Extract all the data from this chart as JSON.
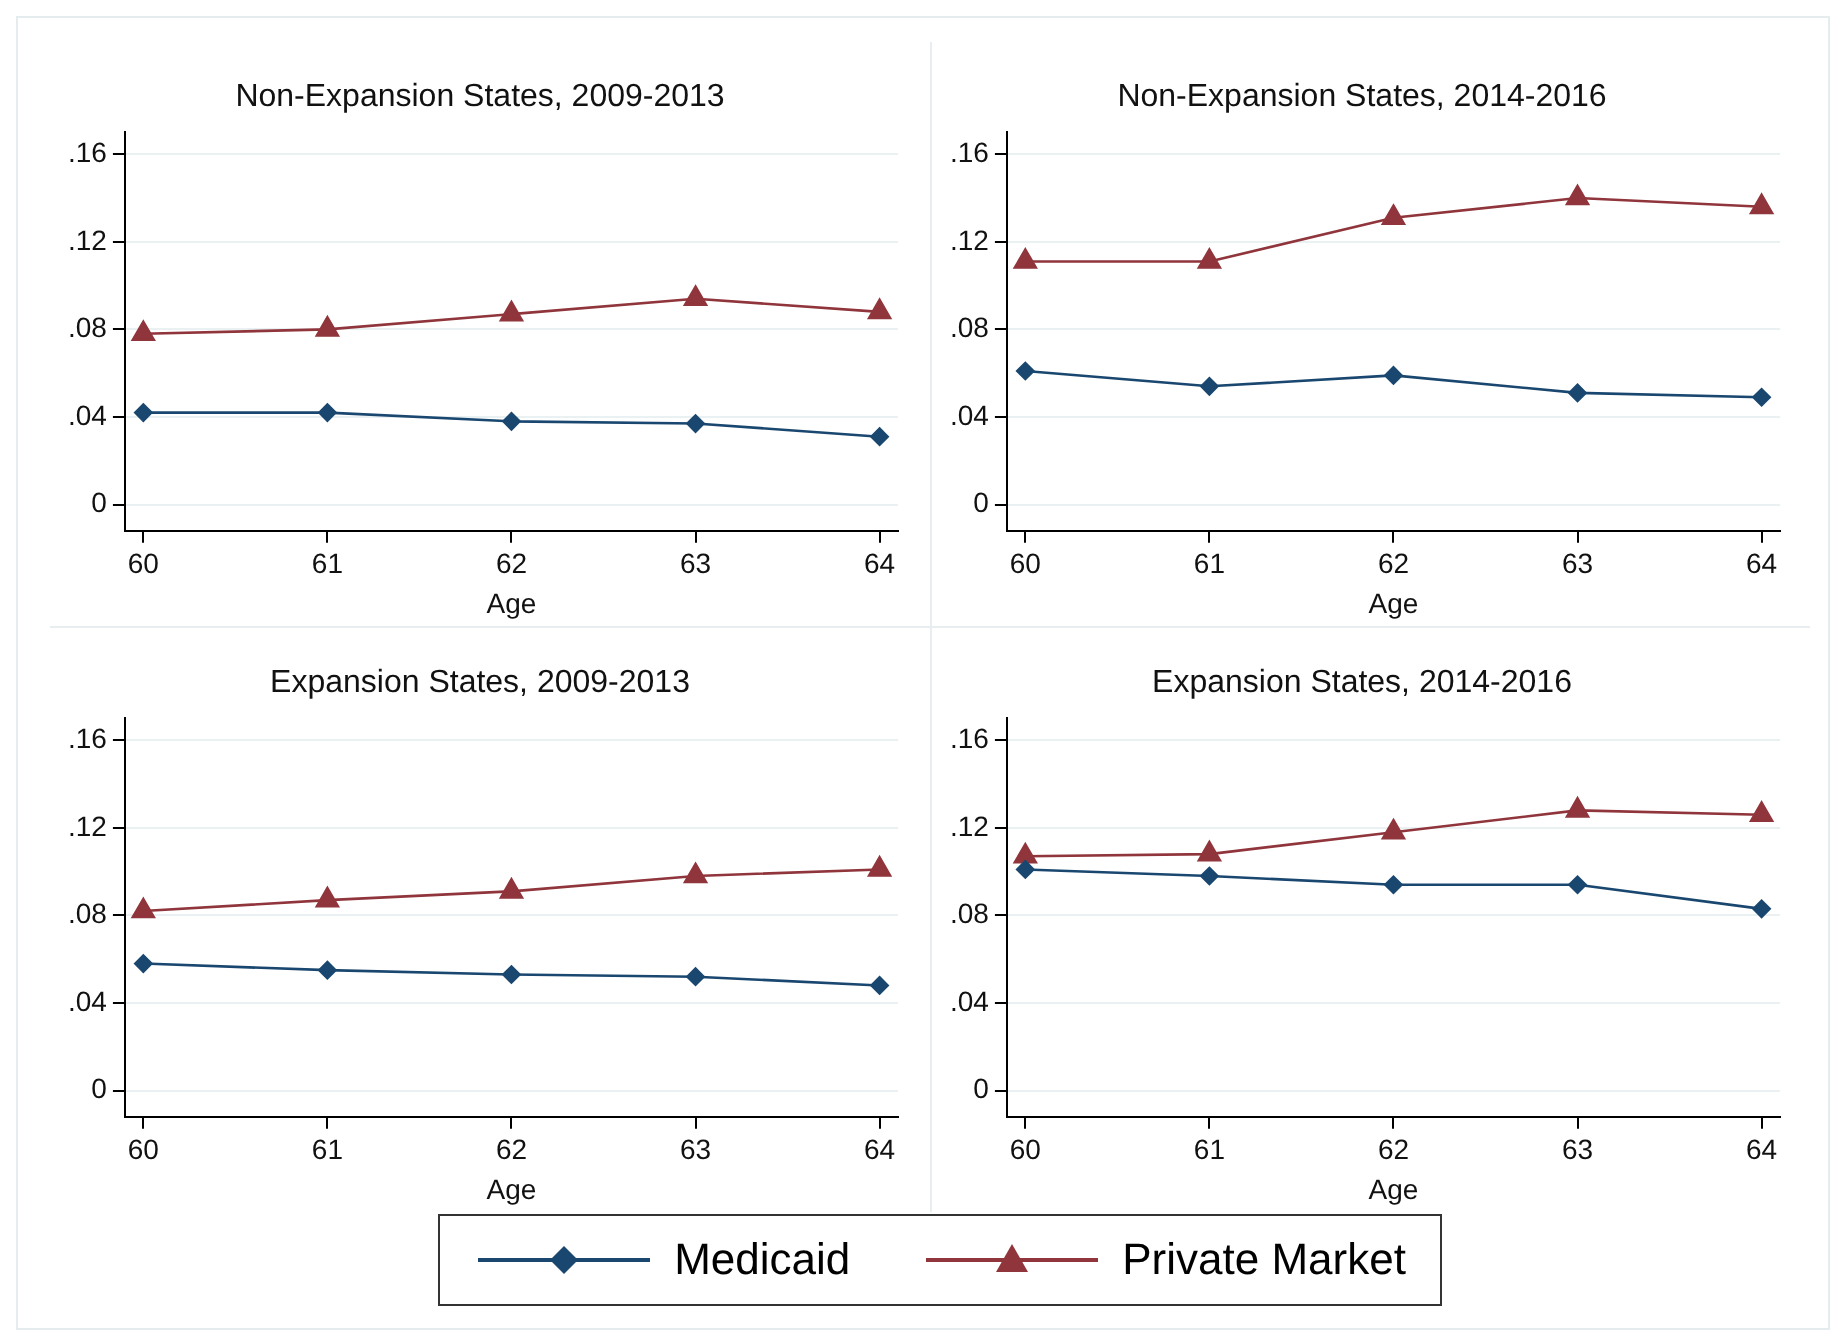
{
  "chart_data": [
    {
      "type": "line",
      "title": "Non-Expansion States, 2009-2013",
      "xlabel": "Age",
      "x": [
        60,
        61,
        62,
        63,
        64
      ],
      "xlim": [
        59.9,
        64.1
      ],
      "xticks": [
        60,
        61,
        62,
        63,
        64
      ],
      "ylim": [
        -0.012,
        0.17
      ],
      "yticks": [
        {
          "value": 0,
          "label": "0"
        },
        {
          "value": 0.04,
          "label": ".04"
        },
        {
          "value": 0.08,
          "label": ".08"
        },
        {
          "value": 0.12,
          "label": ".12"
        },
        {
          "value": 0.16,
          "label": ".16"
        }
      ],
      "grid": "y",
      "legend": "bottom",
      "series": [
        {
          "name": "Medicaid",
          "color": "#1a476f",
          "marker": "diamond",
          "values": [
            0.042,
            0.042,
            0.038,
            0.037,
            0.031
          ]
        },
        {
          "name": "Private Market",
          "color": "#90353b",
          "marker": "triangle",
          "values": [
            0.078,
            0.08,
            0.087,
            0.094,
            0.088
          ]
        }
      ]
    },
    {
      "type": "line",
      "title": "Non-Expansion States, 2014-2016",
      "xlabel": "Age",
      "x": [
        60,
        61,
        62,
        63,
        64
      ],
      "xlim": [
        59.9,
        64.1
      ],
      "xticks": [
        60,
        61,
        62,
        63,
        64
      ],
      "ylim": [
        -0.012,
        0.17
      ],
      "yticks": [
        {
          "value": 0,
          "label": "0"
        },
        {
          "value": 0.04,
          "label": ".04"
        },
        {
          "value": 0.08,
          "label": ".08"
        },
        {
          "value": 0.12,
          "label": ".12"
        },
        {
          "value": 0.16,
          "label": ".16"
        }
      ],
      "grid": "y",
      "series": [
        {
          "color": "#1a476f",
          "marker": "diamond",
          "values": [
            0.061,
            0.054,
            0.059,
            0.051,
            0.049
          ]
        },
        {
          "color": "#90353b",
          "marker": "triangle",
          "values": [
            0.111,
            0.111,
            0.131,
            0.14,
            0.136
          ]
        }
      ]
    },
    {
      "type": "line",
      "title": "Expansion States, 2009-2013",
      "xlabel": "Age",
      "x": [
        60,
        61,
        62,
        63,
        64
      ],
      "xlim": [
        59.9,
        64.1
      ],
      "xticks": [
        60,
        61,
        62,
        63,
        64
      ],
      "ylim": [
        -0.012,
        0.17
      ],
      "yticks": [
        {
          "value": 0,
          "label": "0"
        },
        {
          "value": 0.04,
          "label": ".04"
        },
        {
          "value": 0.08,
          "label": ".08"
        },
        {
          "value": 0.12,
          "label": ".12"
        },
        {
          "value": 0.16,
          "label": ".16"
        }
      ],
      "grid": "y",
      "series": [
        {
          "color": "#1a476f",
          "marker": "diamond",
          "values": [
            0.058,
            0.055,
            0.053,
            0.052,
            0.048
          ]
        },
        {
          "color": "#90353b",
          "marker": "triangle",
          "values": [
            0.082,
            0.087,
            0.091,
            0.098,
            0.101
          ]
        }
      ]
    },
    {
      "type": "line",
      "title": "Expansion States, 2014-2016",
      "xlabel": "Age",
      "x": [
        60,
        61,
        62,
        63,
        64
      ],
      "xlim": [
        59.9,
        64.1
      ],
      "xticks": [
        60,
        61,
        62,
        63,
        64
      ],
      "ylim": [
        -0.012,
        0.17
      ],
      "yticks": [
        {
          "value": 0,
          "label": "0"
        },
        {
          "value": 0.04,
          "label": ".04"
        },
        {
          "value": 0.08,
          "label": ".08"
        },
        {
          "value": 0.12,
          "label": ".12"
        },
        {
          "value": 0.16,
          "label": ".16"
        }
      ],
      "grid": "y",
      "series": [
        {
          "color": "#1a476f",
          "marker": "diamond",
          "values": [
            0.101,
            0.098,
            0.094,
            0.094,
            0.083
          ]
        },
        {
          "color": "#90353b",
          "marker": "triangle",
          "values": [
            0.107,
            0.108,
            0.118,
            0.128,
            0.126
          ]
        }
      ]
    }
  ]
}
